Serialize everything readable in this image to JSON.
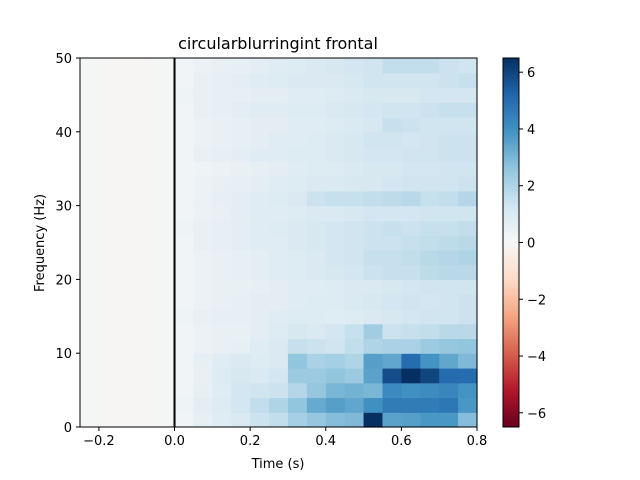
{
  "chart_data": {
    "type": "heatmap",
    "title": "circularblurringint frontal",
    "xlabel": "Time (s)",
    "ylabel": "Frequency (Hz)",
    "xlim": [
      -0.25,
      0.8
    ],
    "ylim": [
      0,
      50
    ],
    "x_ticks": [
      -0.2,
      0.0,
      0.2,
      0.4,
      0.6,
      0.8
    ],
    "x_tick_labels": [
      "−0.2",
      "0.0",
      "0.2",
      "0.4",
      "0.6",
      "0.8"
    ],
    "y_ticks": [
      0,
      10,
      20,
      30,
      40,
      50
    ],
    "y_tick_labels": [
      "0",
      "10",
      "20",
      "30",
      "40",
      "50"
    ],
    "colorbar": {
      "range": [
        -6.5,
        6.5
      ],
      "ticks": [
        -6,
        -4,
        -2,
        0,
        2,
        4,
        6
      ],
      "tick_labels": [
        "−6",
        "−4",
        "−2",
        "0",
        "2",
        "4",
        "6"
      ],
      "colormap": "RdBu_r"
    },
    "event_line_x": 0.0,
    "time_bins": [
      -0.25,
      -0.2,
      -0.15,
      -0.1,
      -0.05,
      0.0,
      0.05,
      0.1,
      0.15,
      0.2,
      0.25,
      0.3,
      0.35,
      0.4,
      0.45,
      0.5,
      0.55,
      0.6,
      0.65,
      0.7,
      0.75
    ],
    "time_bin_width": 0.05,
    "freq_bin_height": 2.0,
    "values_note_rows": "row i covers frequency 2*i to 2*i+2 Hz, row 0 at bottom",
    "values": [
      [
        0.1,
        -0.1,
        -0.1,
        -0.1,
        0.1,
        0.2,
        0.6,
        0.8,
        1.0,
        1.4,
        1.6,
        2.2,
        2.5,
        2.8,
        2.9,
        6.5,
        3.5,
        3.6,
        3.8,
        3.8,
        2.8
      ],
      [
        0.1,
        -0.1,
        -0.1,
        -0.1,
        0.1,
        0.3,
        0.7,
        0.9,
        1.2,
        1.6,
        2.0,
        2.6,
        3.3,
        3.6,
        3.4,
        4.0,
        4.6,
        4.6,
        4.6,
        4.7,
        3.8
      ],
      [
        0.1,
        -0.1,
        -0.1,
        -0.1,
        0.1,
        0.2,
        0.6,
        0.8,
        1.2,
        1.3,
        1.4,
        1.9,
        2.5,
        3.0,
        3.1,
        3.0,
        4.2,
        4.0,
        4.1,
        4.3,
        3.9
      ],
      [
        0.1,
        -0.1,
        -0.1,
        -0.1,
        0.1,
        0.2,
        0.5,
        0.9,
        1.1,
        1.0,
        1.2,
        2.4,
        2.4,
        2.6,
        2.4,
        3.5,
        5.8,
        6.5,
        6.0,
        5.0,
        5.0
      ],
      [
        0.1,
        -0.1,
        -0.1,
        -0.1,
        0.1,
        0.2,
        0.6,
        0.8,
        1.0,
        0.9,
        1.0,
        2.6,
        2.1,
        2.2,
        2.0,
        3.6,
        3.4,
        5.0,
        3.9,
        3.4,
        2.9
      ],
      [
        0.1,
        -0.1,
        -0.1,
        -0.1,
        0.1,
        0.2,
        0.4,
        0.5,
        0.6,
        0.8,
        1.0,
        1.5,
        1.4,
        1.3,
        1.6,
        2.0,
        2.1,
        2.1,
        2.4,
        2.5,
        2.6
      ],
      [
        0.1,
        -0.1,
        -0.1,
        -0.1,
        0.1,
        0.2,
        0.4,
        0.5,
        0.5,
        0.7,
        0.9,
        1.1,
        1.0,
        1.2,
        1.5,
        2.3,
        1.4,
        1.5,
        1.6,
        1.8,
        1.8
      ],
      [
        0.1,
        -0.1,
        -0.1,
        -0.1,
        0.1,
        0.3,
        0.5,
        0.6,
        0.6,
        0.7,
        0.8,
        0.9,
        0.9,
        0.8,
        0.9,
        1.0,
        1.1,
        1.2,
        1.3,
        1.3,
        1.4
      ],
      [
        0.1,
        -0.1,
        -0.1,
        -0.1,
        0.1,
        0.2,
        0.4,
        0.5,
        0.6,
        0.7,
        0.7,
        0.8,
        0.9,
        0.9,
        1.0,
        1.1,
        1.2,
        1.3,
        1.2,
        1.3,
        1.4
      ],
      [
        0.1,
        -0.1,
        -0.1,
        -0.1,
        0.1,
        0.2,
        0.4,
        0.5,
        0.5,
        0.6,
        0.7,
        0.8,
        0.8,
        0.9,
        1.0,
        1.0,
        1.1,
        1.2,
        1.3,
        1.3,
        1.3
      ],
      [
        0.1,
        -0.1,
        -0.1,
        -0.1,
        0.1,
        0.2,
        0.4,
        0.5,
        0.6,
        0.7,
        0.8,
        0.9,
        1.0,
        1.1,
        1.2,
        1.4,
        1.5,
        1.5,
        1.7,
        1.8,
        1.8
      ],
      [
        0.1,
        -0.1,
        -0.1,
        -0.1,
        0.1,
        0.2,
        0.4,
        0.5,
        0.6,
        0.7,
        0.8,
        0.9,
        1.0,
        1.2,
        1.3,
        1.5,
        1.5,
        1.6,
        1.8,
        1.9,
        2.0
      ],
      [
        0.1,
        -0.1,
        -0.1,
        -0.1,
        0.1,
        0.2,
        0.5,
        0.6,
        0.7,
        0.8,
        0.8,
        1.0,
        1.1,
        1.2,
        1.3,
        1.4,
        1.4,
        1.5,
        1.6,
        1.7,
        1.8
      ],
      [
        0.1,
        -0.1,
        -0.1,
        -0.1,
        0.1,
        0.3,
        0.5,
        0.6,
        0.7,
        0.8,
        0.9,
        1.0,
        1.1,
        1.2,
        1.3,
        1.4,
        1.5,
        1.4,
        1.5,
        1.5,
        1.6
      ],
      [
        0.1,
        -0.1,
        -0.1,
        -0.1,
        0.1,
        0.2,
        0.4,
        0.5,
        0.7,
        0.8,
        0.8,
        0.9,
        1.0,
        1.0,
        1.1,
        1.2,
        1.2,
        1.2,
        1.3,
        1.3,
        1.3
      ],
      [
        0.1,
        -0.1,
        -0.1,
        -0.1,
        0.1,
        0.2,
        0.4,
        0.6,
        0.7,
        0.8,
        0.9,
        1.0,
        1.4,
        1.5,
        1.5,
        1.6,
        1.7,
        1.8,
        1.5,
        1.6,
        1.9
      ],
      [
        0.1,
        -0.1,
        -0.1,
        -0.1,
        0.1,
        0.2,
        0.4,
        0.5,
        0.6,
        0.7,
        0.8,
        0.9,
        1.0,
        1.0,
        1.1,
        1.1,
        1.2,
        1.3,
        1.3,
        1.3,
        1.4
      ],
      [
        0.1,
        -0.1,
        -0.1,
        -0.1,
        0.1,
        0.2,
        0.3,
        0.4,
        0.5,
        0.6,
        0.7,
        0.8,
        0.9,
        0.9,
        1.0,
        1.1,
        1.1,
        1.2,
        1.2,
        1.3,
        1.3
      ],
      [
        0.1,
        -0.1,
        -0.1,
        -0.1,
        0.1,
        0.2,
        0.5,
        0.6,
        0.7,
        0.8,
        0.8,
        0.9,
        0.9,
        1.0,
        1.1,
        1.2,
        1.2,
        1.3,
        1.3,
        1.4,
        1.4
      ],
      [
        0.1,
        -0.1,
        -0.1,
        -0.1,
        0.1,
        0.2,
        0.4,
        0.5,
        0.6,
        0.7,
        0.8,
        0.8,
        0.9,
        1.0,
        1.1,
        1.3,
        1.3,
        1.2,
        1.3,
        1.4,
        1.4
      ],
      [
        0.1,
        -0.1,
        -0.1,
        -0.1,
        0.1,
        0.2,
        0.4,
        0.5,
        0.6,
        0.7,
        0.7,
        0.8,
        0.8,
        0.9,
        1.0,
        1.1,
        1.5,
        1.4,
        1.3,
        1.3,
        1.3
      ],
      [
        0.1,
        -0.1,
        -0.1,
        -0.1,
        0.1,
        0.2,
        0.5,
        0.6,
        0.7,
        0.8,
        0.8,
        0.9,
        0.9,
        1.0,
        1.1,
        1.2,
        1.3,
        1.3,
        1.4,
        1.5,
        1.5
      ],
      [
        0.1,
        -0.1,
        -0.1,
        -0.1,
        0.1,
        0.3,
        0.5,
        0.6,
        0.6,
        0.7,
        0.7,
        0.8,
        0.8,
        0.9,
        1.0,
        1.1,
        1.1,
        1.1,
        1.2,
        1.2,
        1.2
      ],
      [
        0.1,
        -0.1,
        -0.1,
        -0.1,
        0.1,
        0.2,
        0.5,
        0.6,
        0.7,
        0.8,
        0.9,
        1.0,
        1.0,
        1.0,
        1.1,
        1.3,
        1.3,
        1.3,
        1.3,
        1.4,
        1.5
      ],
      [
        0.1,
        -0.1,
        -0.1,
        -0.1,
        0.1,
        0.2,
        0.4,
        0.5,
        0.6,
        0.7,
        0.8,
        0.9,
        1.0,
        1.1,
        1.2,
        1.3,
        1.6,
        1.6,
        1.6,
        1.4,
        1.3
      ]
    ]
  }
}
